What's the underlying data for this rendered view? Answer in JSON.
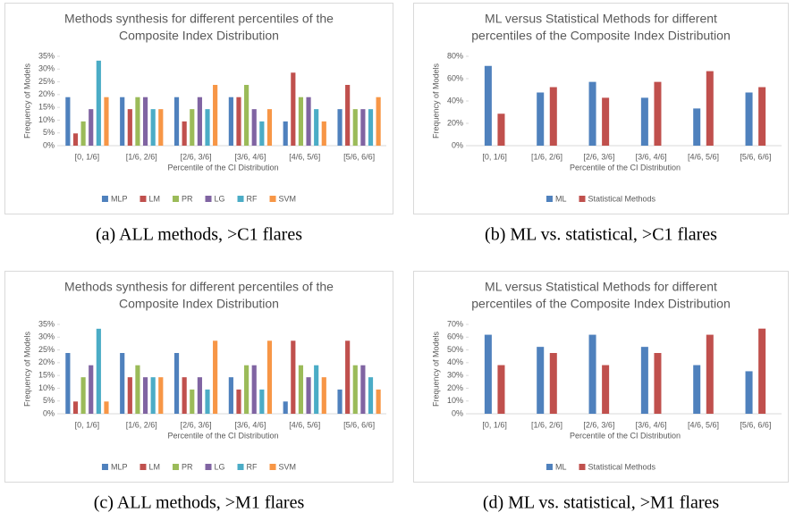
{
  "chart_data": [
    {
      "type": "bar",
      "title": [
        "Methods synthesis for different percentiles of  the",
        "Composite Index Distribution"
      ],
      "xlabel": "Percentile of the CI Distribution",
      "ylabel": "Frequency of Models",
      "caption": "(a) ALL methods, >C1 flares",
      "categories": [
        "[0, 1/6]",
        "[1/6, 2/6]",
        "[2/6, 3/6]",
        "[3/6, 4/6]",
        "[4/6, 5/6]",
        "[5/6, 6/6]"
      ],
      "series": [
        {
          "name": "MLP",
          "color": "#4f81bd",
          "values": [
            19.0,
            19.0,
            19.0,
            19.0,
            9.5,
            14.3
          ]
        },
        {
          "name": "LM",
          "color": "#c0504d",
          "values": [
            4.8,
            14.3,
            9.5,
            19.0,
            28.6,
            23.8
          ]
        },
        {
          "name": "PR",
          "color": "#9bbb59",
          "values": [
            9.5,
            19.0,
            14.3,
            23.8,
            19.0,
            14.3
          ]
        },
        {
          "name": "LG",
          "color": "#8064a2",
          "values": [
            14.3,
            19.0,
            19.0,
            14.3,
            19.0,
            14.3
          ]
        },
        {
          "name": "RF",
          "color": "#4bacc6",
          "values": [
            33.3,
            14.3,
            14.3,
            9.5,
            14.3,
            14.3
          ]
        },
        {
          "name": "SVM",
          "color": "#f79646",
          "values": [
            19.0,
            14.3,
            23.8,
            14.3,
            9.5,
            19.0
          ]
        }
      ],
      "ylim": [
        0,
        35
      ],
      "yticks": [
        {
          "value": 0,
          "label": "0%"
        },
        {
          "value": 5,
          "label": "5%"
        },
        {
          "value": 10,
          "label": "10%"
        },
        {
          "value": 15,
          "label": "15%"
        },
        {
          "value": 20,
          "label": "20%"
        },
        {
          "value": 25,
          "label": "25%"
        },
        {
          "value": 30,
          "label": "30%"
        },
        {
          "value": 35,
          "label": "35%"
        }
      ],
      "legend": "bottom"
    },
    {
      "type": "bar",
      "title": [
        "ML versus Statistical Methods for different",
        "percentiles of the Composite Index Distribution"
      ],
      "xlabel": "Percentile of the CI Distribution",
      "ylabel": "Frequency of Models",
      "caption": "(b) ML vs. statistical, >C1 flares",
      "categories": [
        "[0, 1/6]",
        "[1/6, 2/6]",
        "[2/6, 3/6]",
        "[3/6, 4/6]",
        "[4/6, 5/6]",
        "[5/6, 6/6]"
      ],
      "series": [
        {
          "name": "ML",
          "color": "#4f81bd",
          "values": [
            71.4,
            47.6,
            57.1,
            42.9,
            33.3,
            47.6
          ]
        },
        {
          "name": "Statistical Methods",
          "color": "#c0504d",
          "values": [
            28.6,
            52.4,
            42.9,
            57.1,
            66.7,
            52.4
          ]
        }
      ],
      "ylim": [
        0,
        80
      ],
      "yticks": [
        {
          "value": 0,
          "label": "0%"
        },
        {
          "value": 20,
          "label": "20%"
        },
        {
          "value": 40,
          "label": "40%"
        },
        {
          "value": 60,
          "label": "60%"
        },
        {
          "value": 80,
          "label": "80%"
        }
      ],
      "legend": "bottom"
    },
    {
      "type": "bar",
      "title": [
        "Methods synthesis for different percentiles of the",
        "Composite Index Distribution"
      ],
      "xlabel": "Percentile of the CI Distribution",
      "ylabel": "Frequency of Models",
      "caption": "(c) ALL methods, >M1 flares",
      "categories": [
        "[0, 1/6]",
        "[1/6, 2/6]",
        "[2/6, 3/6]",
        "[3/6, 4/6]",
        "[4/6, 5/6]",
        "[5/6, 6/6]"
      ],
      "series": [
        {
          "name": "MLP",
          "color": "#4f81bd",
          "values": [
            23.8,
            23.8,
            23.8,
            14.3,
            4.8,
            9.5
          ]
        },
        {
          "name": "LM",
          "color": "#c0504d",
          "values": [
            4.8,
            14.3,
            14.3,
            9.5,
            28.6,
            28.6
          ]
        },
        {
          "name": "PR",
          "color": "#9bbb59",
          "values": [
            14.3,
            19.0,
            9.5,
            19.0,
            19.0,
            19.0
          ]
        },
        {
          "name": "LG",
          "color": "#8064a2",
          "values": [
            19.0,
            14.3,
            14.3,
            19.0,
            14.3,
            19.0
          ]
        },
        {
          "name": "RF",
          "color": "#4bacc6",
          "values": [
            33.3,
            14.3,
            9.5,
            9.5,
            19.0,
            14.3
          ]
        },
        {
          "name": "SVM",
          "color": "#f79646",
          "values": [
            4.8,
            14.3,
            28.6,
            28.6,
            14.3,
            9.5
          ]
        }
      ],
      "ylim": [
        0,
        35
      ],
      "yticks": [
        {
          "value": 0,
          "label": "0%"
        },
        {
          "value": 5,
          "label": "5%"
        },
        {
          "value": 10,
          "label": "10%"
        },
        {
          "value": 15,
          "label": "15%"
        },
        {
          "value": 20,
          "label": "20%"
        },
        {
          "value": 25,
          "label": "25%"
        },
        {
          "value": 30,
          "label": "30%"
        },
        {
          "value": 35,
          "label": "35%"
        }
      ],
      "legend": "bottom"
    },
    {
      "type": "bar",
      "title": [
        "ML versus Statistical Methods for different",
        "percentiles of the Composite Index Distribution"
      ],
      "xlabel": "Percentile of the CI Distribution",
      "ylabel": "Frequency of Models",
      "caption": "(d) ML vs. statistical, >M1 flares",
      "categories": [
        "[0, 1/6]",
        "[1/6, 2/6]",
        "[2/6, 3/6]",
        "[3/6, 4/6]",
        "[4/6, 5/6]",
        "[5/6, 6/6]"
      ],
      "series": [
        {
          "name": "ML",
          "color": "#4f81bd",
          "values": [
            61.9,
            52.4,
            61.9,
            52.4,
            38.1,
            33.3
          ]
        },
        {
          "name": "Statistical Methods",
          "color": "#c0504d",
          "values": [
            38.1,
            47.6,
            38.1,
            47.6,
            61.9,
            66.7
          ]
        }
      ],
      "ylim": [
        0,
        70
      ],
      "yticks": [
        {
          "value": 0,
          "label": "0%"
        },
        {
          "value": 10,
          "label": "10%"
        },
        {
          "value": 20,
          "label": "20%"
        },
        {
          "value": 30,
          "label": "30%"
        },
        {
          "value": 40,
          "label": "40%"
        },
        {
          "value": 50,
          "label": "50%"
        },
        {
          "value": 60,
          "label": "60%"
        },
        {
          "value": 70,
          "label": "70%"
        }
      ],
      "legend": "bottom"
    }
  ]
}
